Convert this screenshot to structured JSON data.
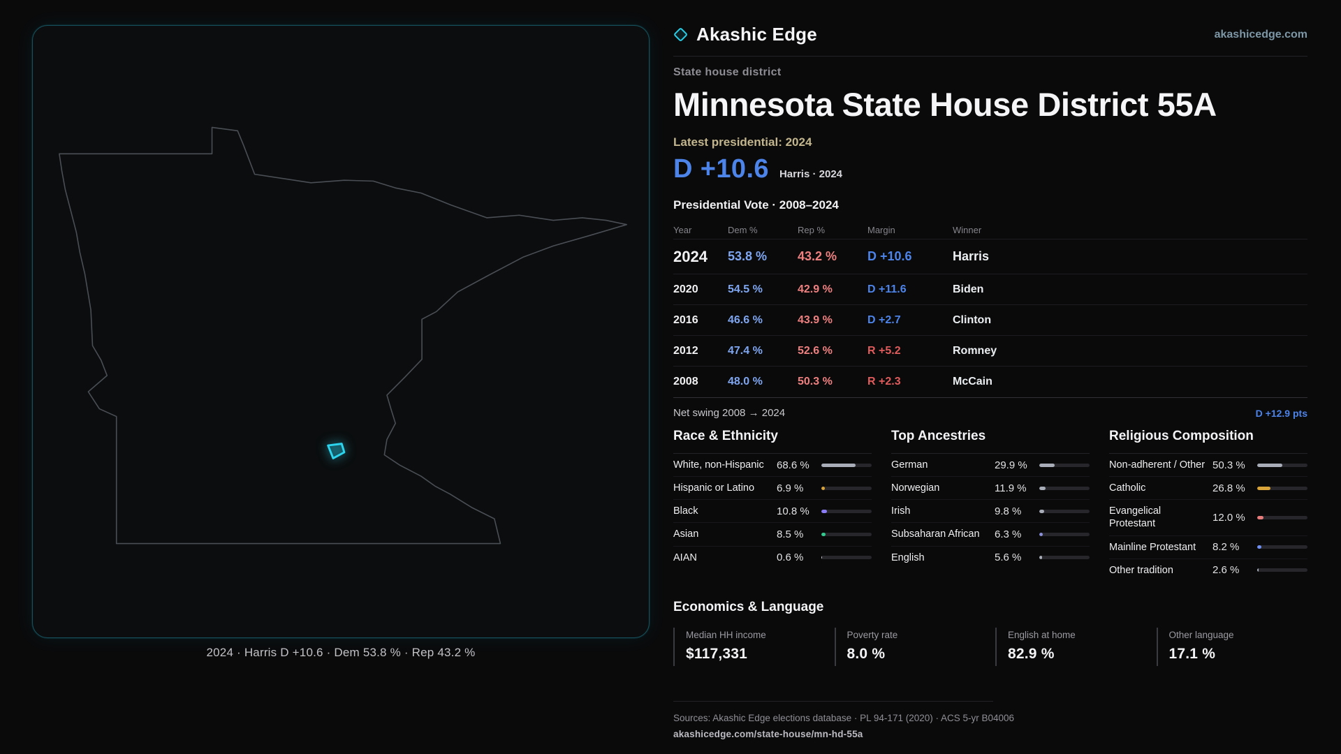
{
  "brand": {
    "name": "Akashic Edge",
    "domain": "akashicedge.com"
  },
  "colors": {
    "accent": "#29cfe8",
    "dem_blue": "#4d84ea",
    "rep_red": "#e05c5c"
  },
  "map": {
    "caption": "2024 · Harris D +10.6 · Dem 53.8 % · Rep 43.2 %"
  },
  "header": {
    "kicker": "State house district",
    "title": "Minnesota State House District 55A",
    "latest_label": "Latest presidential: 2024",
    "latest_margin": "D +10.6",
    "latest_detail": "Harris · 2024"
  },
  "vote_table": {
    "title": "Presidential Vote · 2008–2024",
    "columns": [
      "Year",
      "Dem %",
      "Rep %",
      "Margin",
      "Winner"
    ],
    "rows": [
      {
        "year": "2024",
        "dem": "53.8 %",
        "rep": "43.2 %",
        "margin": "D +10.6",
        "winner": "Harris"
      },
      {
        "year": "2020",
        "dem": "54.5 %",
        "rep": "42.9 %",
        "margin": "D +11.6",
        "winner": "Biden"
      },
      {
        "year": "2016",
        "dem": "46.6 %",
        "rep": "43.9 %",
        "margin": "D +2.7",
        "winner": "Clinton"
      },
      {
        "year": "2012",
        "dem": "47.4 %",
        "rep": "52.6 %",
        "margin": "R +5.2",
        "winner": "Romney"
      },
      {
        "year": "2008",
        "dem": "48.0 %",
        "rep": "50.3 %",
        "margin": "R +2.3",
        "winner": "McCain"
      }
    ],
    "net_swing_label": "Net swing 2008 → 2024",
    "net_swing_value": "D +12.9 pts"
  },
  "demographics": [
    {
      "title": "Race & Ethnicity",
      "rows": [
        {
          "label": "White, non-Hispanic",
          "value": "68.6 %",
          "pct": 68.6,
          "color": "#a8adb8"
        },
        {
          "label": "Hispanic or Latino",
          "value": "6.9 %",
          "pct": 6.9,
          "color": "#d9a43a"
        },
        {
          "label": "Black",
          "value": "10.8 %",
          "pct": 10.8,
          "color": "#8b7cf6"
        },
        {
          "label": "Asian",
          "value": "8.5 %",
          "pct": 8.5,
          "color": "#34c98e"
        },
        {
          "label": "AIAN",
          "value": "0.6 %",
          "pct": 0.6,
          "color": "#c9ccd3"
        }
      ]
    },
    {
      "title": "Top Ancestries",
      "rows": [
        {
          "label": "German",
          "value": "29.9 %",
          "pct": 29.9,
          "color": "#a8adb8"
        },
        {
          "label": "Norwegian",
          "value": "11.9 %",
          "pct": 11.9,
          "color": "#a8adb8"
        },
        {
          "label": "Irish",
          "value": "9.8 %",
          "pct": 9.8,
          "color": "#a8adb8"
        },
        {
          "label": "Subsaharan African",
          "value": "6.3 %",
          "pct": 6.3,
          "color": "#8b8fd9"
        },
        {
          "label": "English",
          "value": "5.6 %",
          "pct": 5.6,
          "color": "#a8adb8"
        }
      ]
    },
    {
      "title": "Religious Composition",
      "rows": [
        {
          "label": "Non-adherent / Other",
          "value": "50.3 %",
          "pct": 50.3,
          "color": "#a8adb8"
        },
        {
          "label": "Catholic",
          "value": "26.8 %",
          "pct": 26.8,
          "color": "#d9a43a"
        },
        {
          "label": "Evangelical Protestant",
          "value": "12.0 %",
          "pct": 12.0,
          "color": "#e87c7c"
        },
        {
          "label": "Mainline Protestant",
          "value": "8.2 %",
          "pct": 8.2,
          "color": "#6f8ef2"
        },
        {
          "label": "Other tradition",
          "value": "2.6 %",
          "pct": 2.6,
          "color": "#a8adb8"
        }
      ]
    }
  ],
  "economics": {
    "title": "Economics & Language",
    "stats": [
      {
        "label": "Median HH income",
        "value": "$117,331"
      },
      {
        "label": "Poverty rate",
        "value": "8.0 %"
      },
      {
        "label": "English at home",
        "value": "82.9 %"
      },
      {
        "label": "Other language",
        "value": "17.1 %"
      }
    ]
  },
  "footer": {
    "sources": "Sources: Akashic Edge elections database · PL 94-171 (2020) · ACS 5-yr B04006",
    "permalink": "akashicedge.com/state-house/mn-hd-55a"
  }
}
